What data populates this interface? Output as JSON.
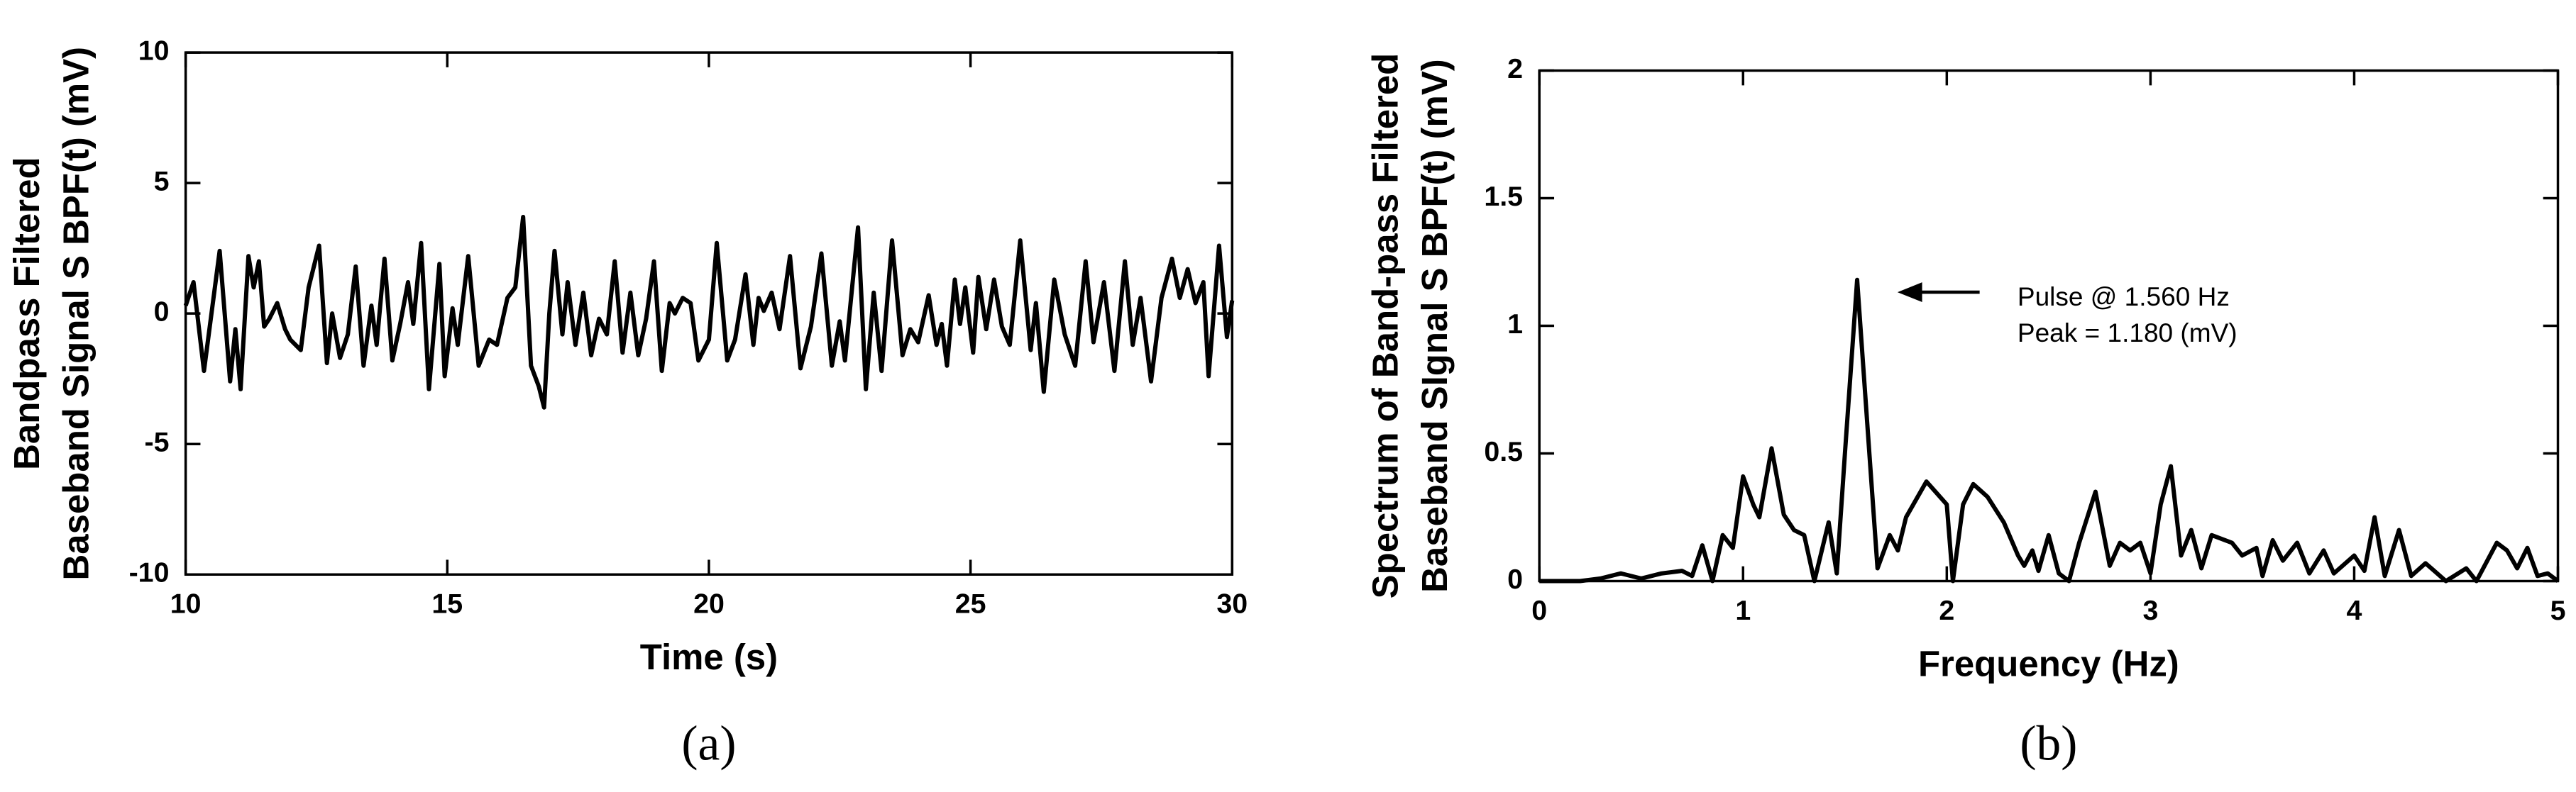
{
  "chart_data": [
    {
      "type": "line",
      "panel_label": "(a)",
      "xlabel": "Time (s)",
      "ylabel": [
        "Bandpass Filtered",
        "Baseband Signal S BPF(t) (mV)"
      ],
      "xlim": [
        10,
        30
      ],
      "xticks": [
        10,
        15,
        20,
        25,
        30
      ],
      "ylim": [
        -10,
        10
      ],
      "yticks": [
        -10,
        -5,
        0,
        5,
        10
      ],
      "color": "#000000",
      "x": [
        10.0,
        10.15,
        10.35,
        10.65,
        10.85,
        10.95,
        11.05,
        11.2,
        11.3,
        11.4,
        11.5,
        11.6,
        11.75,
        11.9,
        12.0,
        12.2,
        12.35,
        12.55,
        12.7,
        12.8,
        12.95,
        13.1,
        13.25,
        13.4,
        13.55,
        13.65,
        13.8,
        13.95,
        14.1,
        14.25,
        14.35,
        14.5,
        14.65,
        14.85,
        14.95,
        15.1,
        15.2,
        15.4,
        15.6,
        15.8,
        15.95,
        16.15,
        16.3,
        16.45,
        16.6,
        16.75,
        16.85,
        16.95,
        17.05,
        17.2,
        17.3,
        17.45,
        17.6,
        17.75,
        17.9,
        18.05,
        18.2,
        18.35,
        18.5,
        18.65,
        18.8,
        18.95,
        19.1,
        19.25,
        19.35,
        19.5,
        19.65,
        19.8,
        20.0,
        20.15,
        20.35,
        20.5,
        20.7,
        20.85,
        20.95,
        21.05,
        21.2,
        21.35,
        21.55,
        21.75,
        21.95,
        22.15,
        22.35,
        22.5,
        22.6,
        22.85,
        23.0,
        23.15,
        23.3,
        23.5,
        23.7,
        23.85,
        24.0,
        24.2,
        24.35,
        24.45,
        24.55,
        24.7,
        24.8,
        24.9,
        25.05,
        25.15,
        25.3,
        25.45,
        25.6,
        25.75,
        25.95,
        26.15,
        26.25,
        26.4,
        26.6,
        26.8,
        27.0,
        27.2,
        27.35,
        27.55,
        27.75,
        27.95,
        28.1,
        28.25,
        28.45,
        28.65,
        28.85,
        29.0,
        29.15,
        29.3,
        29.45,
        29.55,
        29.75,
        29.9,
        30.0
      ],
      "values": [
        0.3,
        1.2,
        -2.2,
        2.4,
        -2.6,
        -0.6,
        -2.9,
        2.2,
        1.0,
        2.0,
        -0.5,
        -0.2,
        0.4,
        -0.6,
        -1.0,
        -1.4,
        1.0,
        2.6,
        -1.9,
        0.0,
        -1.7,
        -0.8,
        1.8,
        -2.0,
        0.3,
        -1.2,
        2.1,
        -1.8,
        -0.4,
        1.2,
        -0.4,
        2.7,
        -2.9,
        1.9,
        -2.4,
        0.2,
        -1.2,
        2.2,
        -2.0,
        -1.0,
        -1.2,
        0.6,
        1.0,
        3.7,
        -2.0,
        -2.8,
        -3.6,
        0.0,
        2.4,
        -0.8,
        1.2,
        -1.2,
        0.8,
        -1.6,
        -0.2,
        -0.8,
        2.0,
        -1.5,
        0.8,
        -1.6,
        -0.2,
        2.0,
        -2.2,
        0.4,
        0.0,
        0.6,
        0.4,
        -1.8,
        -1.0,
        2.7,
        -1.8,
        -1.0,
        1.5,
        -1.2,
        0.6,
        0.1,
        0.8,
        -0.6,
        2.2,
        -2.1,
        -0.5,
        2.3,
        -2.0,
        -0.3,
        -1.8,
        3.3,
        -2.9,
        0.8,
        -2.2,
        2.8,
        -1.6,
        -0.6,
        -1.1,
        0.7,
        -1.2,
        -0.4,
        -2.0,
        1.3,
        -0.4,
        1.0,
        -1.5,
        1.4,
        -0.6,
        1.3,
        -0.5,
        -1.2,
        2.8,
        -1.4,
        0.4,
        -3.0,
        1.3,
        -0.8,
        -2.0,
        2.0,
        -1.1,
        1.2,
        -2.2,
        2.0,
        -1.2,
        0.6,
        -2.6,
        0.6,
        2.1,
        0.6,
        1.7,
        0.4,
        1.2,
        -2.4,
        2.6,
        -0.9,
        0.5
      ]
    },
    {
      "type": "line",
      "panel_label": "(b)",
      "xlabel": "Frequency (Hz)",
      "ylabel": [
        "Spectrum of Band-pass Filtered",
        "Baseband SIgnal S BPF(t) (mV)"
      ],
      "annotation": [
        "Pulse @ 1.560 Hz",
        "Peak = 1.180 (mV)"
      ],
      "xlim": [
        0,
        5
      ],
      "xticks": [
        0,
        1,
        2,
        3,
        4,
        5
      ],
      "ylim": [
        0,
        2
      ],
      "yticks": [
        0,
        0.5,
        1,
        1.5,
        2
      ],
      "color": "#000000",
      "x": [
        0,
        0.2,
        0.3,
        0.4,
        0.5,
        0.6,
        0.7,
        0.75,
        0.8,
        0.85,
        0.9,
        0.95,
        1.0,
        1.05,
        1.08,
        1.14,
        1.2,
        1.25,
        1.3,
        1.35,
        1.42,
        1.46,
        1.5,
        1.56,
        1.62,
        1.66,
        1.72,
        1.76,
        1.8,
        1.9,
        2.0,
        2.03,
        2.08,
        2.13,
        2.2,
        2.28,
        2.35,
        2.38,
        2.42,
        2.45,
        2.5,
        2.55,
        2.6,
        2.65,
        2.73,
        2.8,
        2.85,
        2.9,
        2.95,
        3.0,
        3.05,
        3.1,
        3.15,
        3.2,
        3.25,
        3.3,
        3.4,
        3.45,
        3.52,
        3.55,
        3.6,
        3.65,
        3.72,
        3.78,
        3.85,
        3.9,
        4.0,
        4.05,
        4.1,
        4.15,
        4.22,
        4.28,
        4.35,
        4.45,
        4.55,
        4.6,
        4.7,
        4.75,
        4.8,
        4.85,
        4.9,
        4.95,
        5.0
      ],
      "values": [
        0,
        0.0,
        0.01,
        0.03,
        0.01,
        0.03,
        0.04,
        0.02,
        0.14,
        0.0,
        0.18,
        0.13,
        0.41,
        0.3,
        0.25,
        0.52,
        0.26,
        0.2,
        0.18,
        0.0,
        0.23,
        0.03,
        0.5,
        1.18,
        0.5,
        0.05,
        0.18,
        0.12,
        0.25,
        0.39,
        0.3,
        0.0,
        0.3,
        0.38,
        0.33,
        0.23,
        0.1,
        0.06,
        0.12,
        0.04,
        0.18,
        0.03,
        0.0,
        0.15,
        0.35,
        0.06,
        0.15,
        0.12,
        0.15,
        0.03,
        0.3,
        0.45,
        0.1,
        0.2,
        0.05,
        0.18,
        0.15,
        0.1,
        0.13,
        0.02,
        0.16,
        0.08,
        0.15,
        0.03,
        0.12,
        0.03,
        0.1,
        0.04,
        0.25,
        0.02,
        0.2,
        0.02,
        0.07,
        0.0,
        0.05,
        0.0,
        0.15,
        0.12,
        0.05,
        0.13,
        0.02,
        0.03,
        0.0
      ]
    }
  ]
}
